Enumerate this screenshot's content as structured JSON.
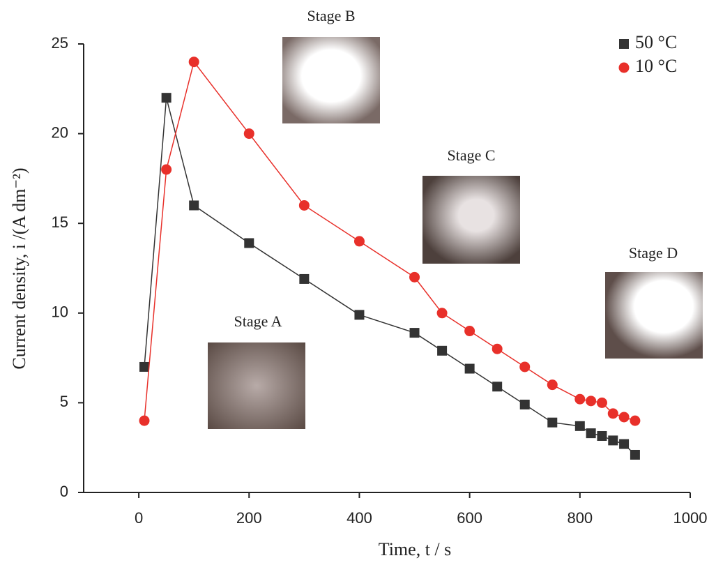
{
  "chart_data": {
    "type": "line",
    "xlabel": "Time, t / s",
    "ylabel": "Current density, i /(A dm⁻²)",
    "x": [
      10,
      50,
      100,
      200,
      300,
      400,
      500,
      550,
      600,
      650,
      700,
      750,
      800,
      820,
      840,
      860,
      880,
      900
    ],
    "series": [
      {
        "name": "50 °C",
        "color": "#333333",
        "marker": "square",
        "values": [
          7,
          22,
          16,
          13.9,
          11.9,
          9.9,
          8.9,
          7.9,
          6.9,
          5.9,
          4.9,
          3.9,
          3.7,
          3.3,
          3.15,
          2.9,
          2.7,
          2.1
        ]
      },
      {
        "name": "10 °C",
        "color": "#e8302a",
        "marker": "circle",
        "values": [
          4,
          18,
          24,
          20,
          16,
          14,
          12,
          10,
          9,
          8,
          7,
          6,
          5.2,
          5.1,
          5.0,
          4.4,
          4.2,
          4.0
        ]
      }
    ],
    "annotations": [
      "Stage A",
      "Stage B",
      "Stage C",
      "Stage D"
    ],
    "xlim": [
      -100,
      1000
    ],
    "xticks": [
      0,
      200,
      400,
      600,
      800,
      1000
    ],
    "ylim": [
      0,
      25
    ],
    "yticks": [
      0,
      5,
      10,
      15,
      20,
      25
    ],
    "legend": "top-right"
  }
}
